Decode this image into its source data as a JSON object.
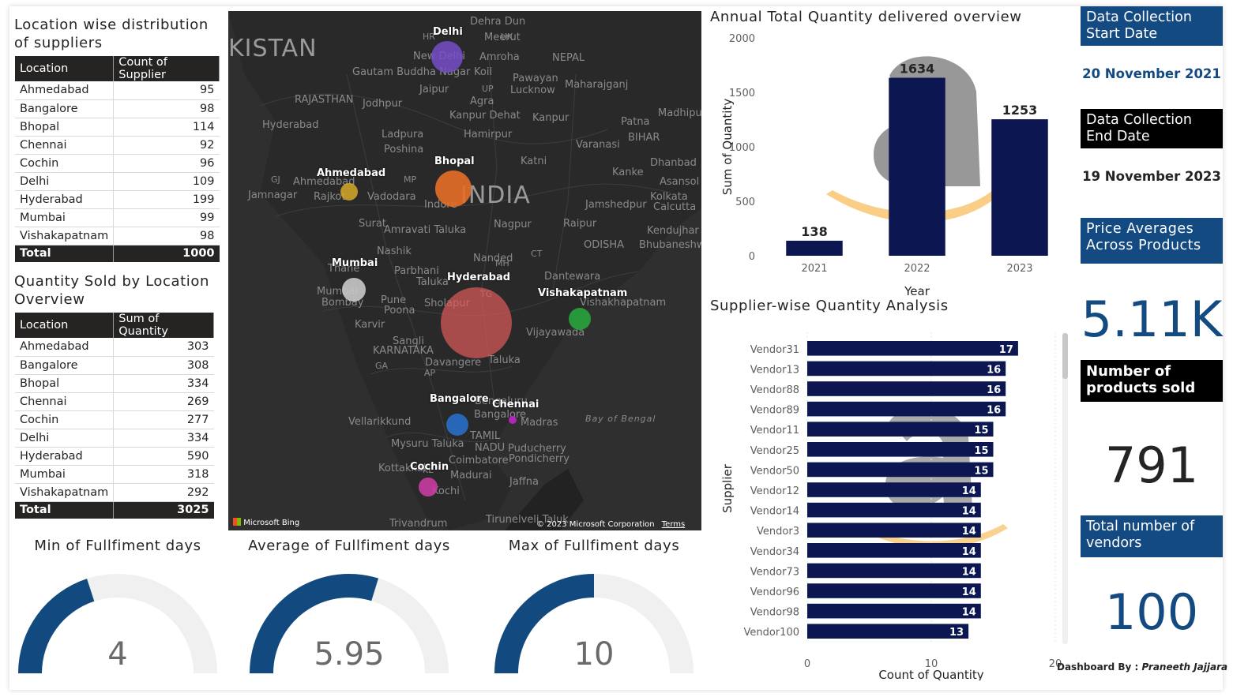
{
  "supplier_table": {
    "title": "Location wise distribution of suppliers",
    "headers": [
      "Location",
      "Count of Supplier"
    ],
    "rows": [
      [
        "Ahmedabad",
        "95"
      ],
      [
        "Bangalore",
        "98"
      ],
      [
        "Bhopal",
        "114"
      ],
      [
        "Chennai",
        "92"
      ],
      [
        "Cochin",
        "96"
      ],
      [
        "Delhi",
        "109"
      ],
      [
        "Hyderabad",
        "199"
      ],
      [
        "Mumbai",
        "99"
      ],
      [
        "Vishakapatnam",
        "98"
      ]
    ],
    "total_label": "Total",
    "total_value": "1000"
  },
  "quantity_table": {
    "title": "Quantity Sold by Location Overview",
    "headers": [
      "Location",
      "Sum of Quantity"
    ],
    "rows": [
      [
        "Ahmedabad",
        "303"
      ],
      [
        "Bangalore",
        "308"
      ],
      [
        "Bhopal",
        "334"
      ],
      [
        "Chennai",
        "269"
      ],
      [
        "Cochin",
        "277"
      ],
      [
        "Delhi",
        "334"
      ],
      [
        "Hyderabad",
        "590"
      ],
      [
        "Mumbai",
        "318"
      ],
      [
        "Vishakapatnam",
        "292"
      ]
    ],
    "total_label": "Total",
    "total_value": "3025"
  },
  "map": {
    "big_labels": [
      "KISTAN",
      "INDIA"
    ],
    "place_labels": [
      "Dehra Dun",
      "HR",
      "Meerut",
      "UK",
      "New Delhi",
      "Amroha",
      "NEPAL",
      "Gautam Buddha Nagar",
      "Koil",
      "Pawayan",
      "Lucknow",
      "Jaipur",
      "UP",
      "Maharajganj",
      "RAJASTHAN",
      "Jodhpur",
      "Agra",
      "Madhipur",
      "Kanpur Dehat",
      "Kanpur",
      "Patna",
      "BIHAR",
      "Hyderabad",
      "Ladpura",
      "Hamirpur",
      "Varanasi",
      "Poshina",
      "Katni",
      "Dhanbad",
      "GJ",
      "Ahmedabad",
      "MP",
      "Kanke",
      "Asansol",
      "Jamnagar",
      "Rajkot",
      "Vadodara",
      "Indore",
      "Jamshedpur",
      "Kolkata",
      "Calcutta",
      "Surat",
      "Amravati Taluka",
      "Nagpur",
      "Raipur",
      "Kendujhar",
      "ODISHA",
      "Bhubaneshwar",
      "Nashik",
      "CT",
      "Thane",
      "Parbhani",
      "Nanded",
      "MH",
      "Dantewara",
      "Mumbai",
      "Bombay",
      "Taluka",
      "Pune",
      "Poona",
      "Sholapur",
      "TG",
      "Karvir",
      "Vijayawada",
      "Sangli",
      "KARNATAKA",
      "GA",
      "Davangere",
      "Taluka",
      "AP",
      "Bengaluru",
      "Bangalore",
      "Madras",
      "Vellarikkund",
      "TAMIL",
      "NADU",
      "Mysuru Taluka",
      "Puducherry",
      "Pondicherry",
      "Kottakkal",
      "KL",
      "Coimbatore",
      "Madurai",
      "Kochi",
      "Jaffna",
      "Trivandrum",
      "Tirunelveli Taluk",
      "Bay of Bengal",
      "Vishakhapatnam"
    ],
    "cities": [
      "Delhi",
      "Ahmedabad",
      "Bhopal",
      "Mumbai",
      "Hyderabad",
      "Vishakapatnam",
      "Bangalore",
      "Chennai",
      "Cochin"
    ],
    "credit_left": "Microsoft Bing",
    "credit_right": "© 2023 Microsoft Corporation",
    "terms": "Terms"
  },
  "gauges": [
    {
      "title": "Min of Fullfiment days",
      "value": "4",
      "fill": 0.4
    },
    {
      "title": "Average of Fullfiment days",
      "value": "5.95",
      "fill": 0.595
    },
    {
      "title": "Max of Fullfiment days",
      "value": "10",
      "fill": 0.5
    }
  ],
  "annual_chart": {
    "title": "Annual Total Quantity delivered overview",
    "chart_data": {
      "type": "bar",
      "categories": [
        "2021",
        "2022",
        "2023"
      ],
      "values": [
        138,
        1634,
        1253
      ],
      "xlabel": "Year",
      "ylabel": "Sum of Quantity",
      "ylim": [
        0,
        2000
      ],
      "yticks": [
        "0",
        "500",
        "1000",
        "1500",
        "2000"
      ],
      "bar_color": "#0c1752"
    }
  },
  "supplier_chart": {
    "title": "Supplier-wise Quantity Analysis",
    "chart_data": {
      "type": "bar",
      "orientation": "horizontal",
      "categories": [
        "Vendor31",
        "Vendor13",
        "Vendor88",
        "Vendor89",
        "Vendor11",
        "Vendor25",
        "Vendor50",
        "Vendor12",
        "Vendor14",
        "Vendor3",
        "Vendor34",
        "Vendor73",
        "Vendor96",
        "Vendor98",
        "Vendor100"
      ],
      "values": [
        17,
        16,
        16,
        16,
        15,
        15,
        15,
        14,
        14,
        14,
        14,
        14,
        14,
        14,
        13
      ],
      "xlabel": "Count of Quantity",
      "ylabel": "Supplier",
      "xlim": [
        0,
        20
      ],
      "xticks": [
        "0",
        "10",
        "20"
      ],
      "bar_color": "#0c1752"
    }
  },
  "kpis": {
    "start_label": "Data Collection Start Date",
    "start_value": "20 November 2021",
    "end_label": "Data Collection End Date",
    "end_value": "19 November 2023",
    "price_label": "Price Averages Across Products",
    "price_value": "5.11K",
    "products_label": "Number of products sold",
    "products_value": "791",
    "vendors_label": "Total number of vendors",
    "vendors_value": "100"
  },
  "footer": {
    "by_label": "Dashboard By : ",
    "author": "Praneeth Jajjara"
  },
  "colors": {
    "navy": "#0c1752",
    "blue_head": "#144a82",
    "dark_head": "#000000",
    "gauge": "#124a80",
    "gauge_bg": "#f0f0f0"
  }
}
